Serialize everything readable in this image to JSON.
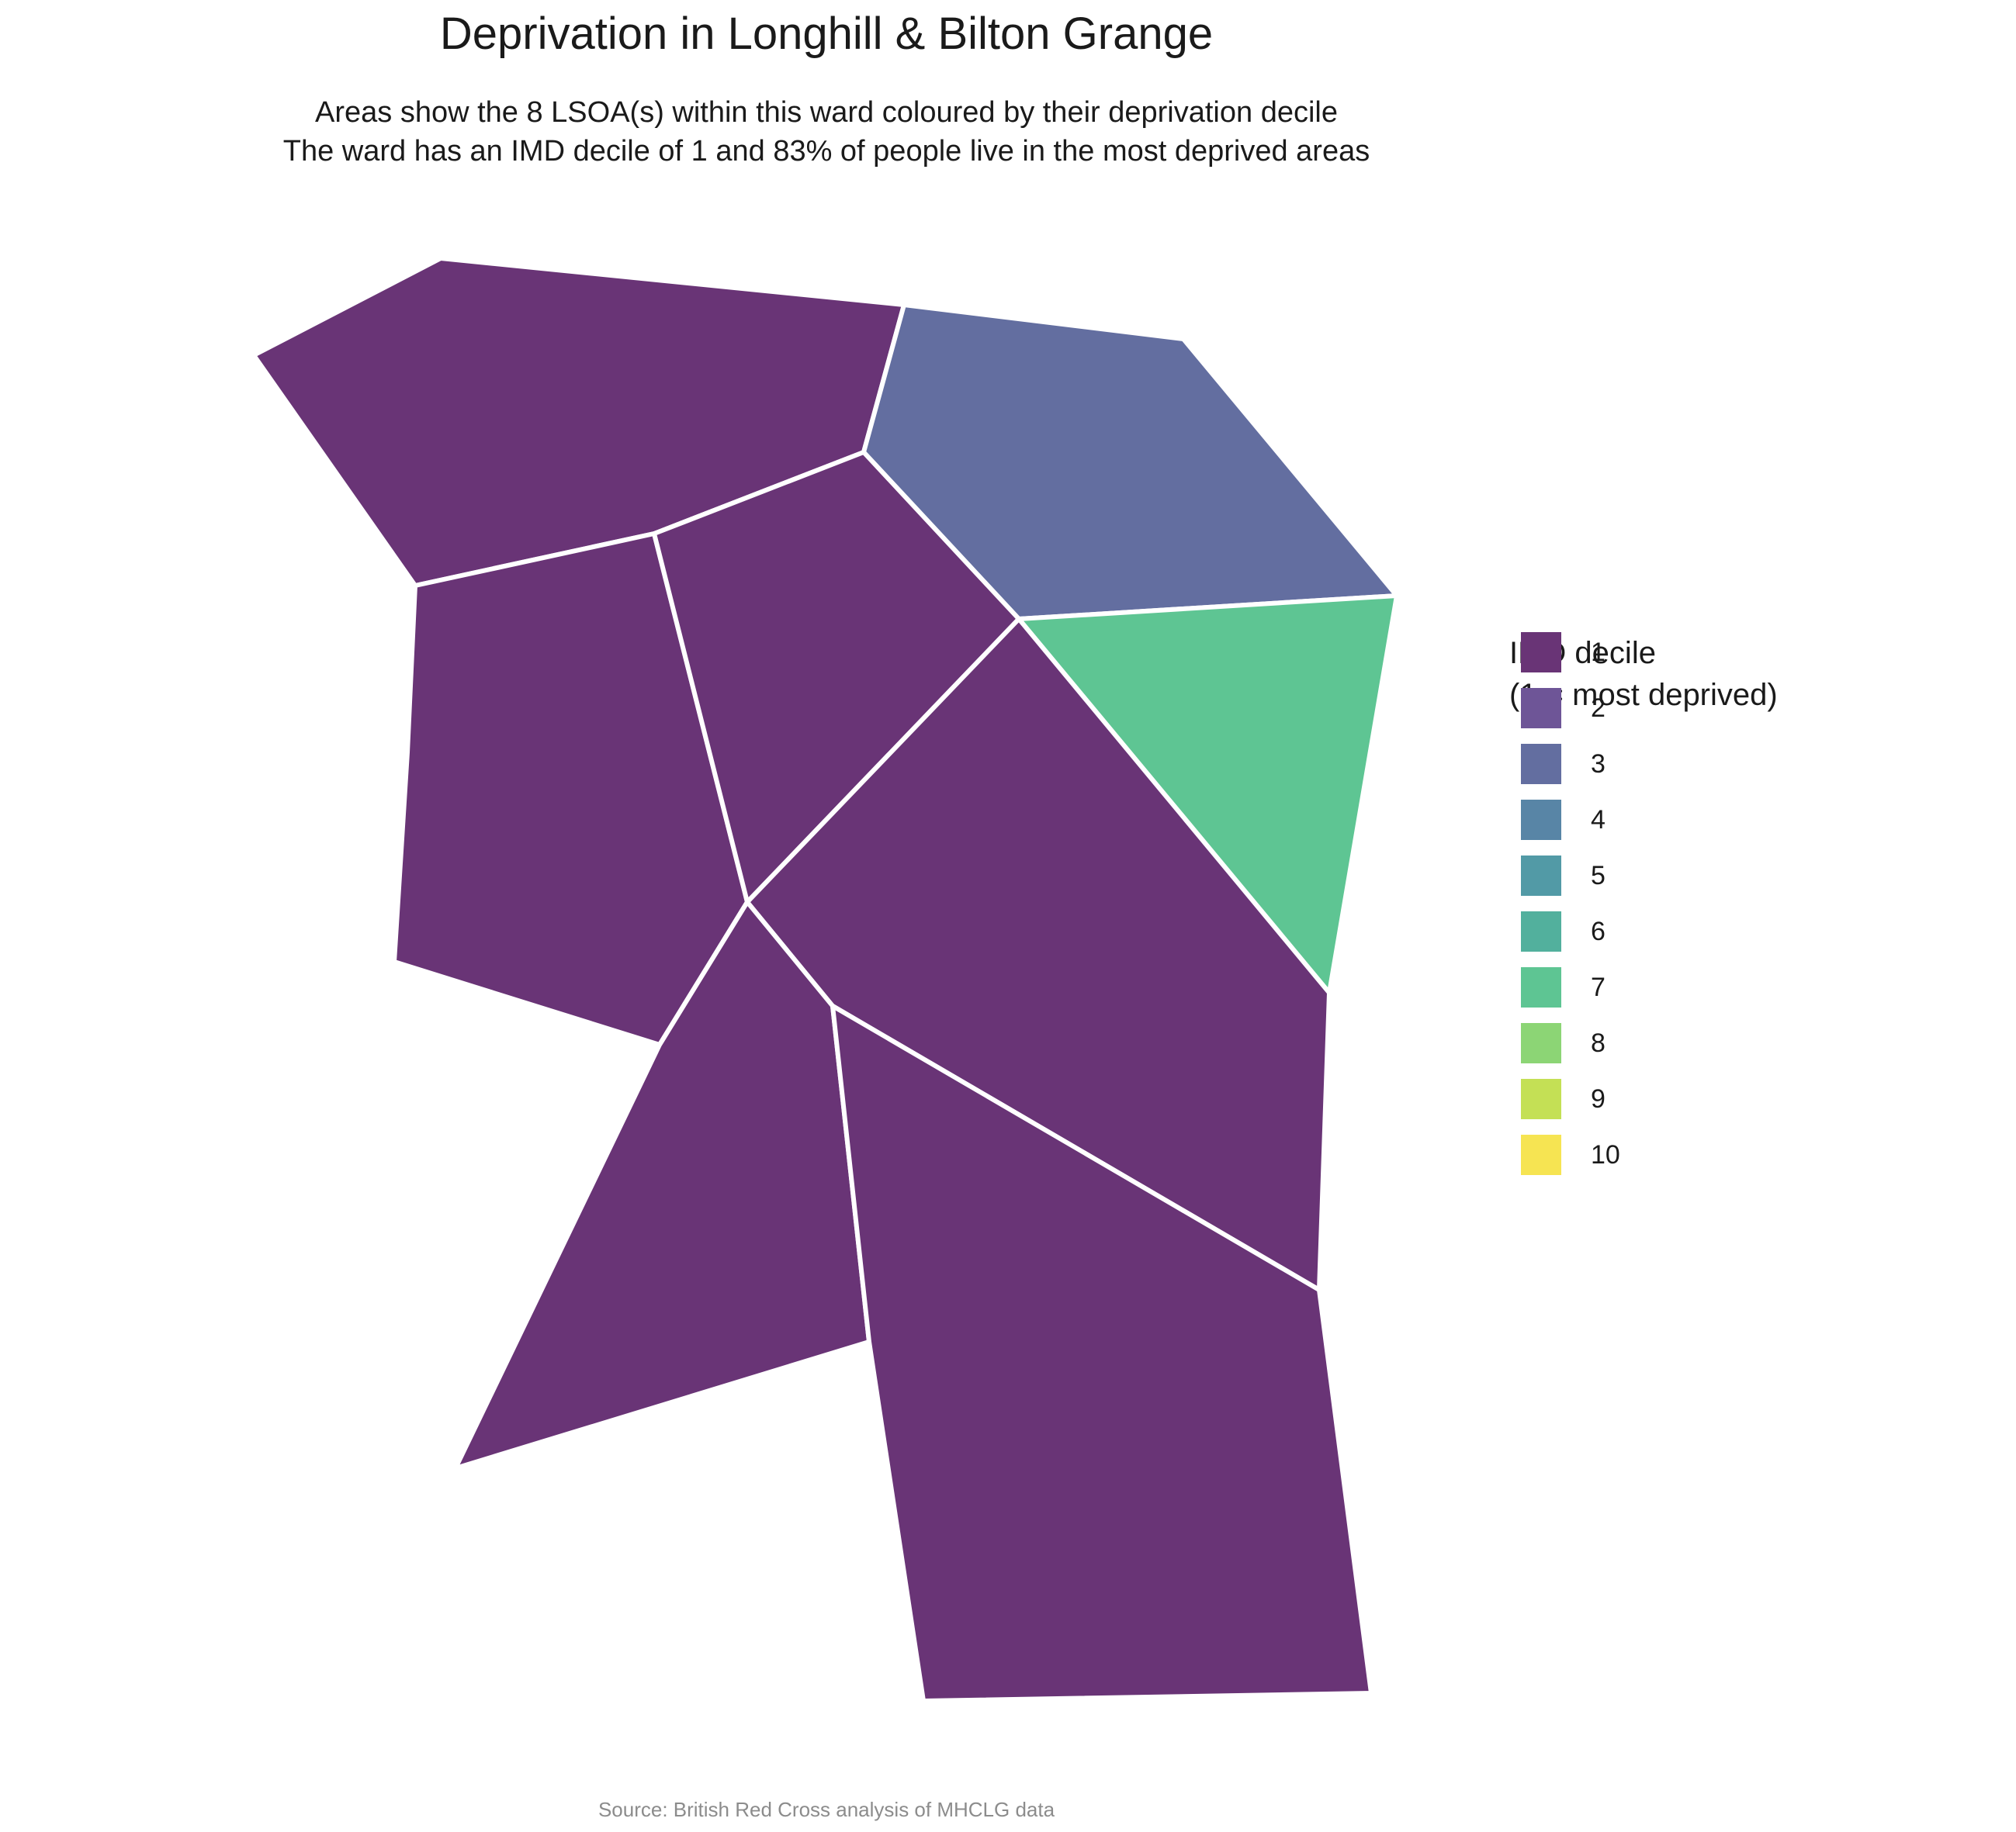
{
  "title": "Deprivation in Longhill & Bilton Grange",
  "subtitle_line1": "Areas show the 8 LSOA(s) within this ward coloured by their deprivation decile",
  "subtitle_line2": "The ward has an IMD decile of 1 and 83% of people live in the most deprived areas",
  "caption": "Source: British Red Cross analysis of MHCLG data",
  "legend": {
    "title_line1": "IMD decile",
    "title_line2": "(1 = most deprived)",
    "items": [
      {
        "label": "1",
        "color": "#693476"
      },
      {
        "label": "2",
        "color": "#6e5597"
      },
      {
        "label": "3",
        "color": "#636ea0"
      },
      {
        "label": "4",
        "color": "#5885a6"
      },
      {
        "label": "5",
        "color": "#529aa6"
      },
      {
        "label": "6",
        "color": "#52b09d"
      },
      {
        "label": "7",
        "color": "#5ec593"
      },
      {
        "label": "8",
        "color": "#8cd575"
      },
      {
        "label": "9",
        "color": "#c4e055"
      },
      {
        "label": "10",
        "color": "#f6e452"
      }
    ]
  },
  "areas": [
    {
      "name": "north-west",
      "decile": 1
    },
    {
      "name": "north-east",
      "decile": 3
    },
    {
      "name": "west",
      "decile": 1
    },
    {
      "name": "central",
      "decile": 1
    },
    {
      "name": "east",
      "decile": 7
    },
    {
      "name": "central-south-east",
      "decile": 1
    },
    {
      "name": "south-west",
      "decile": 1
    },
    {
      "name": "south",
      "decile": 1
    }
  ]
}
